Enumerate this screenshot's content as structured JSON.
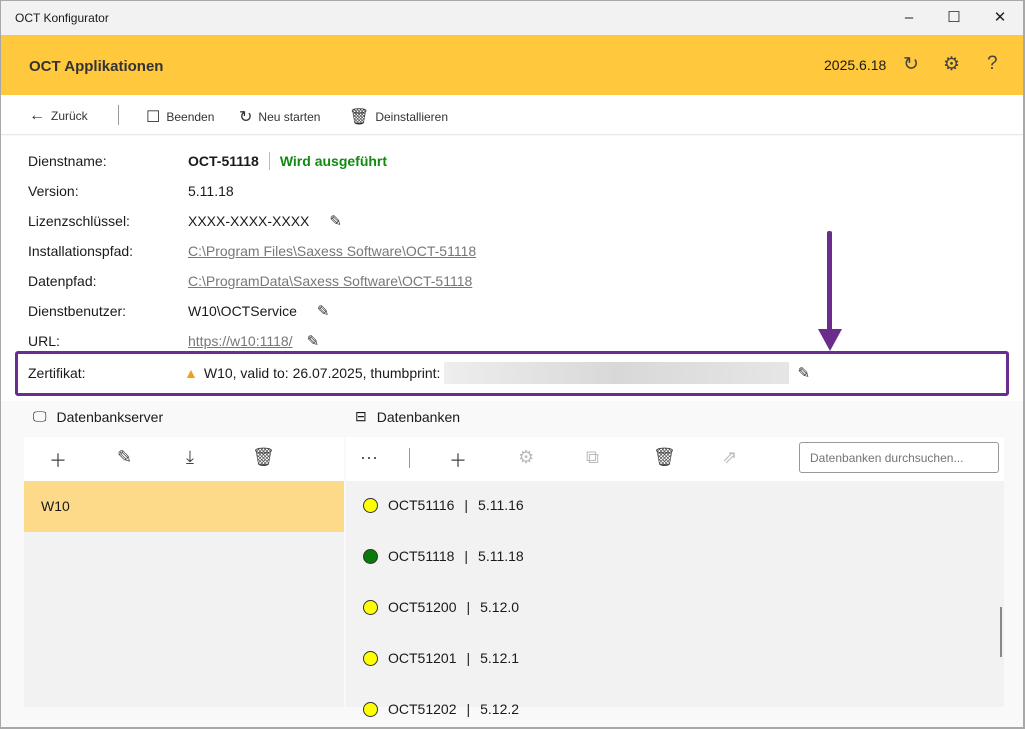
{
  "window": {
    "title": "OCT Konfigurator",
    "minimize": "–",
    "maximize": "☐",
    "close": "✕"
  },
  "header": {
    "title": "OCT Applikationen",
    "version": "2025.6.18",
    "icons": [
      "refresh-icon",
      "gear-icon",
      "help-icon"
    ]
  },
  "toolbar": {
    "back": "Zurück",
    "stop": "Beenden",
    "restart": "Neu starten",
    "uninstall": "Deinstallieren"
  },
  "details": {
    "service_label": "Dienstname:",
    "service_name": "OCT-51118",
    "service_status": "Wird ausgeführt",
    "status_color": "#108a10",
    "version_label": "Version:",
    "version": "5.11.18",
    "license_label": "Lizenzschlüssel:",
    "license": "XXXX-XXXX-XXXX",
    "install_label": "Installationspfad:",
    "install_path": "C:\\Program Files\\Saxess Software\\OCT-51118",
    "data_label": "Datenpfad:",
    "data_path": "C:\\ProgramData\\Saxess Software\\OCT-51118",
    "user_label": "Dienstbenutzer:",
    "user": "W10\\OCTService",
    "url_label": "URL:",
    "url": "https://w10:1118/",
    "cert_label": "Zertifikat:",
    "cert": "W10, valid to: 26.07.2025, thumbprint:"
  },
  "servers": {
    "title": "Datenbankserver",
    "items": [
      {
        "name": "W10"
      }
    ]
  },
  "databases": {
    "title": "Datenbanken",
    "more": "···",
    "search_placeholder": "Datenbanken durchsuchen...",
    "items": [
      {
        "name": "OCT51116",
        "version": "5.11.16",
        "status_color": "#ffff00"
      },
      {
        "name": "OCT51118",
        "version": "5.11.18",
        "status_color": "#0a7a0a"
      },
      {
        "name": "OCT51200",
        "version": "5.12.0",
        "status_color": "#ffff00"
      },
      {
        "name": "OCT51201",
        "version": "5.12.1",
        "status_color": "#ffff00"
      },
      {
        "name": "OCT51202",
        "version": "5.12.2",
        "status_color": "#ffff00"
      }
    ]
  }
}
